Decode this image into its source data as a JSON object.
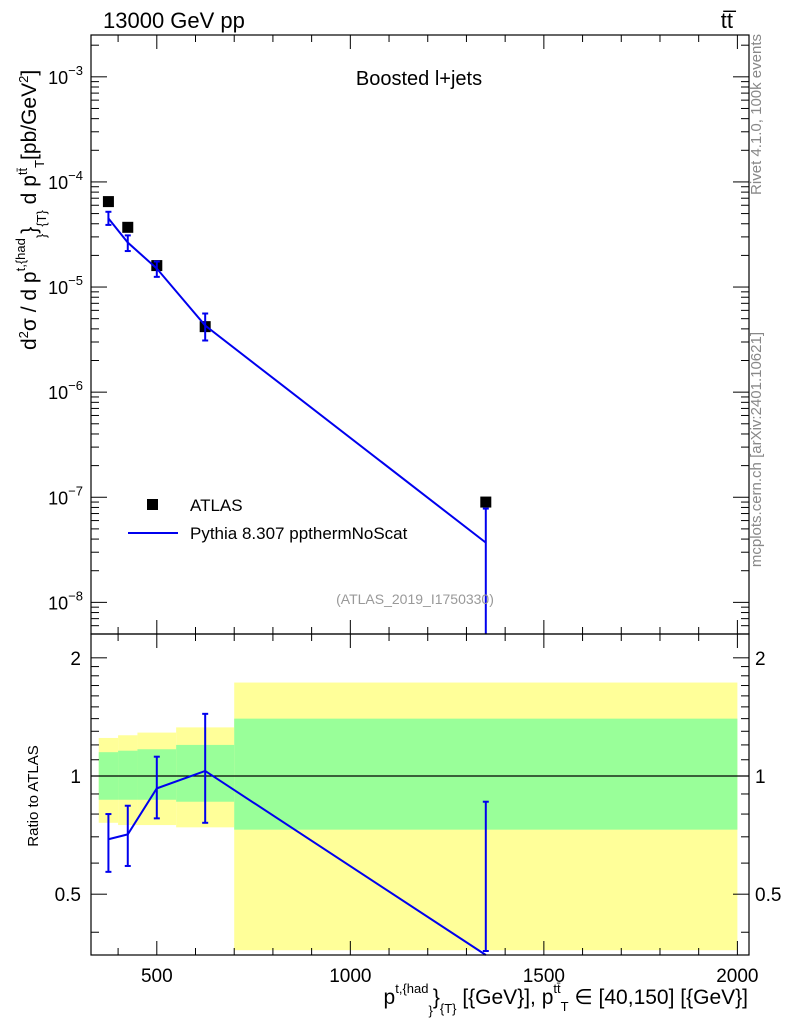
{
  "header": {
    "energy_label": "13000 GeV pp",
    "process_label": "tt̅"
  },
  "side_text": {
    "rivet": "Rivet 4.1.0,  100k events",
    "mcplots": "mcplots.cern.ch [arXiv:2401.10621]"
  },
  "chart_data": [
    {
      "type": "line",
      "panel": "main",
      "title": "Boosted l+jets",
      "watermark": "(ATLAS_2019_I1750330)",
      "yscale": "log",
      "xlim": [
        330,
        2030
      ],
      "ylim": [
        5e-09,
        0.0025
      ],
      "ylabel": "d²σ / d p^{t,{had}}_{T} d p^{tt̅}_T [pb/GeV²]",
      "yticks": [
        {
          "value": 1e-08,
          "mant": "10",
          "exp": "−8"
        },
        {
          "value": 1e-07,
          "mant": "10",
          "exp": "−7"
        },
        {
          "value": 1e-06,
          "mant": "10",
          "exp": "−6"
        },
        {
          "value": 1e-05,
          "mant": "10",
          "exp": "−5"
        },
        {
          "value": 0.0001,
          "mant": "10",
          "exp": "−4"
        },
        {
          "value": 0.001,
          "mant": "10",
          "exp": "−3"
        }
      ],
      "legend": [
        {
          "label": "ATLAS",
          "kind": "marker",
          "color": "#000000"
        },
        {
          "label": "Pythia 8.307 ppthermNoScat",
          "kind": "line",
          "color": "#0000ee"
        }
      ],
      "series": [
        {
          "name": "ATLAS",
          "color": "#000000",
          "points": [
            {
              "x": 375,
              "y": 6.5e-05
            },
            {
              "x": 425,
              "y": 3.7e-05
            },
            {
              "x": 500,
              "y": 1.6e-05
            },
            {
              "x": 625,
              "y": 4.2e-06
            },
            {
              "x": 1350,
              "y": 9e-08
            }
          ]
        },
        {
          "name": "Pythia 8.307 ppthermNoScat",
          "color": "#0000ee",
          "points": [
            {
              "x": 375,
              "y": 4.5e-05,
              "ylo": 3.9e-05,
              "yhi": 5.2e-05
            },
            {
              "x": 425,
              "y": 2.65e-05,
              "ylo": 2.2e-05,
              "yhi": 3.1e-05
            },
            {
              "x": 500,
              "y": 1.5e-05,
              "ylo": 1.25e-05,
              "yhi": 1.75e-05
            },
            {
              "x": 625,
              "y": 4.3e-06,
              "ylo": 3.1e-06,
              "yhi": 5.6e-06
            },
            {
              "x": 1350,
              "y": 3.7e-08,
              "ylo": 3e-09,
              "yhi": 7.8e-08
            }
          ]
        }
      ]
    },
    {
      "type": "line",
      "panel": "ratio",
      "ylabel": "Ratio to ATLAS",
      "xlabel": "p^{t,{had}}_{T} [{GeV}], p^{tt̅}_T ∈ [40,150] [{GeV}]",
      "xlim": [
        330,
        2030
      ],
      "ylim": [
        0.35,
        2.3
      ],
      "yscale": "log",
      "xticks": [
        500,
        1000,
        1500,
        2000
      ],
      "yticks": [
        0.5,
        1,
        2
      ],
      "reference_line": 1,
      "bands": [
        {
          "x0": 350,
          "x1": 400,
          "inner": [
            0.87,
            1.15
          ],
          "outer": [
            0.76,
            1.25
          ]
        },
        {
          "x0": 400,
          "x1": 450,
          "inner": [
            0.87,
            1.16
          ],
          "outer": [
            0.75,
            1.27
          ]
        },
        {
          "x0": 450,
          "x1": 550,
          "inner": [
            0.87,
            1.17
          ],
          "outer": [
            0.75,
            1.29
          ]
        },
        {
          "x0": 550,
          "x1": 700,
          "inner": [
            0.86,
            1.2
          ],
          "outer": [
            0.74,
            1.33
          ]
        },
        {
          "x0": 700,
          "x1": 2000,
          "inner": [
            0.73,
            1.4
          ],
          "outer": [
            0.36,
            1.73
          ]
        }
      ],
      "series": [
        {
          "name": "Pythia 8.307 ppthermNoScat",
          "color": "#0000ee",
          "points": [
            {
              "x": 375,
              "y": 0.69,
              "ylo": 0.57,
              "yhi": 0.8
            },
            {
              "x": 425,
              "y": 0.71,
              "ylo": 0.59,
              "yhi": 0.84
            },
            {
              "x": 500,
              "y": 0.93,
              "ylo": 0.78,
              "yhi": 1.12
            },
            {
              "x": 625,
              "y": 1.03,
              "ylo": 0.76,
              "yhi": 1.44
            },
            {
              "x": 1350,
              "y": 0.35,
              "ylo": 0.35,
              "yhi": 0.86
            }
          ]
        }
      ]
    }
  ]
}
